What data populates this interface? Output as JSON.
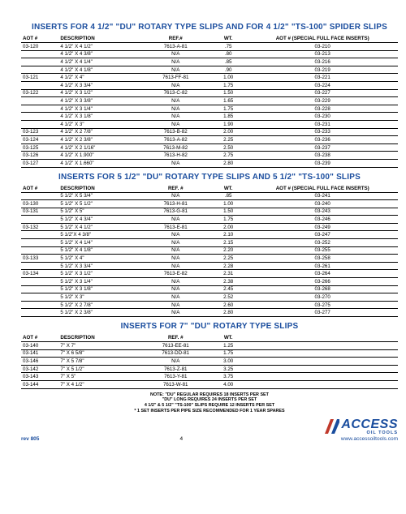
{
  "sections": [
    {
      "title": "INSERTS FOR 4 1/2\" \"DU\" ROTARY TYPE SLIPS AND FOR 4 1/2\" \"TS-100\" SPIDER SLIPS",
      "headers": [
        "AOT #",
        "DESCRIPTION",
        "REF.#",
        "WT.",
        "AOT # (SPECIAL FULL FACE INSERTS)"
      ],
      "rows": [
        [
          "03-120",
          "4 1/2\" X 4 1/2\"",
          "7613-A-81",
          ".75",
          "03-210"
        ],
        [
          "",
          "4 1/2\" X 4 3/8\"",
          "N/A",
          ".80",
          "03-213"
        ],
        [
          "",
          "4 1/2\" X 4 1/4\"",
          "N/A",
          ".85",
          "03-216"
        ],
        [
          "",
          "4 1/2\" X 4 1/8\"",
          "N/A",
          ".90",
          "03-219"
        ],
        [
          "03-121",
          "4 1/2\" X 4\"",
          "7613-FF-81",
          "1.00",
          "03-221"
        ],
        [
          "",
          "4 1/2\" X 3 3/4\"",
          "N/A",
          "1.75",
          "03-224"
        ],
        [
          "03-122",
          "4 1/2\" X 3 1/2\"",
          "7613-C-82",
          "1.50",
          "03-227"
        ],
        [
          "",
          "4 1/2\" X 3 3/8\"",
          "N/A",
          "1.65",
          "03-229"
        ],
        [
          "",
          "4 1/2\" X 3 1/4\"",
          "N/A",
          "1.75",
          "03-228"
        ],
        [
          "",
          "4 1/2\" X 3 1/8\"",
          "N/A",
          "1.85",
          "03-230"
        ],
        [
          "",
          "4 1/2\" X 3\"",
          "N/A",
          "1.90",
          "03-231"
        ],
        [
          "03-123",
          "4 1/2\" X 2 7/8\"",
          "7613-B-82",
          "2.00",
          "03-233"
        ],
        [
          "03-124",
          "4 1/2\" X 2 3/8\"",
          "7613-A-82",
          "2.25",
          "03-236"
        ],
        [
          "03-125",
          "4 1/2\" X 2 1/16\"",
          "7613-M-82",
          "2.50",
          "03-237"
        ],
        [
          "03-126",
          "4 1/2\" X 1.900\"",
          "7613-H-82",
          "2.75",
          "03-238"
        ],
        [
          "03-127",
          "4 1/2\" X 1.660\"",
          "N/A",
          "2.80",
          "03-239"
        ]
      ]
    },
    {
      "title": "INSERTS FOR 5 1/2\" \"DU\" ROTARY TYPE SLIPS AND 5 1/2\" \"TS-100\" SLIPS",
      "headers": [
        "AOT #",
        "DESCRIPTION",
        "REF. #",
        "WT.",
        "AOT # (SPECIAL FULL FACE INSERTS)"
      ],
      "rows": [
        [
          "",
          "5 1/2\" X 5 3/4\"",
          "N/A",
          ".85",
          "03-241"
        ],
        [
          "03-130",
          "5 1/2\" X 5 1/2\"",
          "7613-H-81",
          "1.00",
          "03-240"
        ],
        [
          "03-131",
          "5 1/2\" X 5\"",
          "7613-G-81",
          "1.50",
          "03-243"
        ],
        [
          "",
          "5 1/2\" X 4 3/4\"",
          "N/A",
          "1.75",
          "03-246"
        ],
        [
          "03-132",
          "5 1/2\" X 4 1/2\"",
          "7613-E-81",
          "2.00",
          "03-249"
        ],
        [
          "",
          "5 1/2\"X 4 3/8\"",
          "N/A",
          "2.10",
          "03-247"
        ],
        [
          "",
          "5 1/2\" X 4 1/4\"",
          "N/A",
          "2.15",
          "03-252"
        ],
        [
          "",
          "5 1/2\" X 4 1/8\"",
          "N/A",
          "2.20",
          "03-255"
        ],
        [
          "03-133",
          "5 1/2\" X 4\"",
          "N/A",
          "2.25",
          "03-258"
        ],
        [
          "",
          "5 1/2\" X 3 3/4\"",
          "N/A",
          "2.28",
          "03-261"
        ],
        [
          "03-134",
          "5 1/2\" X 3 1/2\"",
          "7613-E-82",
          "2.31",
          "03-264"
        ],
        [
          "",
          "5 1/2\" X 3 1/4\"",
          "N/A",
          "2.38",
          "03-266"
        ],
        [
          "",
          "5 1/2\" X 3 1/8\"",
          "N/A",
          "2.45",
          "03-268"
        ],
        [
          "",
          "5 1/2\" X 3\"",
          "N/A",
          "2.52",
          "03-270"
        ],
        [
          "",
          "5 1/2\" X 2 7/8\"",
          "N/A",
          "2.60",
          "03-275"
        ],
        [
          "",
          "5 1/2\" X 2 3/8\"",
          "N/A",
          "2.80",
          "03-277"
        ]
      ]
    },
    {
      "title": "INSERTS FOR 7\" \"DU\" ROTARY TYPE SLIPS",
      "headers": [
        "AOT #",
        "DESCRIPTION",
        "REF. #",
        "WT.",
        ""
      ],
      "rows": [
        [
          "03-140",
          "7\" X 7\"",
          "7613-EE-81",
          "1.25",
          ""
        ],
        [
          "03-141",
          "7\" X 6 5/8\"",
          "7613-DD-81",
          "1.75",
          ""
        ],
        [
          "03-146",
          "7\" X 5 7/8\"",
          "N/A",
          "3.00",
          ""
        ],
        [
          "03-142",
          "7\" X 5 1/2\"",
          "7613-Z-81",
          "3.25",
          ""
        ],
        [
          "03-143",
          "7\" X 5\"",
          "7613-Y-81",
          "3.75",
          ""
        ],
        [
          "03-144",
          "7\" X 4 1/2\"",
          "7613-W-81",
          "4.00",
          ""
        ]
      ]
    }
  ],
  "note_lines": [
    "NOTE: \"DU\" REGULAR REQUIRES 18 INSERTS PER SET",
    "\"DU\" LONG REQUIRES 24 INSERTS PER SET",
    "4 1/2\" & 5 1/2\" \"TS-100\" SLIPS REQUIRE 12 INSERTS PER SET",
    "* 1 SET INSERTS PER PIPE SIZE RECOMMENDED FOR 1 YEAR SPARES"
  ],
  "footer": {
    "rev": "rev 805",
    "page": "4",
    "brand_main": "ACCESS",
    "brand_sub": "OIL TOOLS",
    "url": "www.accessoiltools.com"
  }
}
